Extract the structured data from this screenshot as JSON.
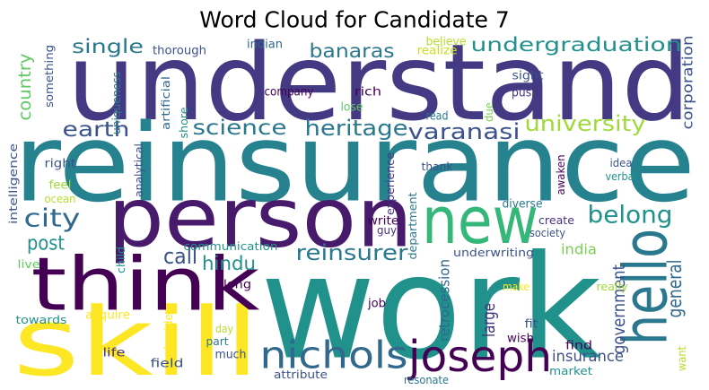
{
  "chart_data": {
    "type": "wordcloud",
    "title": "Word Cloud for Candidate 7",
    "words": [
      {
        "text": "understand",
        "color": "#443a83"
      },
      {
        "text": "reinsurance",
        "color": "#26828e"
      },
      {
        "text": "work",
        "color": "#21918c"
      },
      {
        "text": "person",
        "color": "#481a6c"
      },
      {
        "text": "skill",
        "color": "#fde725"
      },
      {
        "text": "think",
        "color": "#440154"
      },
      {
        "text": "new",
        "color": "#35b779"
      },
      {
        "text": "hello",
        "color": "#2a788e"
      },
      {
        "text": "joseph",
        "color": "#440154"
      },
      {
        "text": "nichols",
        "color": "#31688e"
      },
      {
        "text": "heritage",
        "color": "#2a788e"
      },
      {
        "text": "varanasi",
        "color": "#3b528b"
      },
      {
        "text": "university",
        "color": "#a0da39"
      },
      {
        "text": "science",
        "color": "#2a788e"
      },
      {
        "text": "earth",
        "color": "#3b528b"
      },
      {
        "text": "city",
        "color": "#31688e"
      },
      {
        "text": "post",
        "color": "#21918c"
      },
      {
        "text": "call",
        "color": "#3b528b"
      },
      {
        "text": "hindu",
        "color": "#21918c"
      },
      {
        "text": "reinsurer",
        "color": "#2a788e"
      },
      {
        "text": "belong",
        "color": "#21918c"
      },
      {
        "text": "general",
        "color": "#31688e"
      },
      {
        "text": "government",
        "color": "#3b528b"
      },
      {
        "text": "insurance",
        "color": "#3b528b"
      },
      {
        "text": "india",
        "color": "#7ad151"
      },
      {
        "text": "large",
        "color": "#46337e"
      },
      {
        "text": "retrocession",
        "color": "#31688e"
      },
      {
        "text": "single",
        "color": "#2a788e"
      },
      {
        "text": "banaras",
        "color": "#2a788e"
      },
      {
        "text": "undergraduation",
        "color": "#21918c"
      },
      {
        "text": "country",
        "color": "#5ec962"
      },
      {
        "text": "corporation",
        "color": "#3b528b"
      },
      {
        "text": "thorough",
        "color": "#3b528b"
      },
      {
        "text": "indian",
        "color": "#31688e"
      },
      {
        "text": "believe",
        "color": "#b5de2b"
      },
      {
        "text": "realize",
        "color": "#c8e020"
      },
      {
        "text": "sight",
        "color": "#3b528b"
      },
      {
        "text": "push",
        "color": "#46337e"
      },
      {
        "text": "rich",
        "color": "#440154"
      },
      {
        "text": "company",
        "color": "#440154"
      },
      {
        "text": "lose",
        "color": "#5ec962"
      },
      {
        "text": "read",
        "color": "#2a788e"
      },
      {
        "text": "due",
        "color": "#7ad151"
      },
      {
        "text": "something",
        "color": "#3b528b"
      },
      {
        "text": "uniqueness",
        "color": "#2a788e"
      },
      {
        "text": "artificial",
        "color": "#31688e"
      },
      {
        "text": "shore",
        "color": "#21918c"
      },
      {
        "text": "analytical",
        "color": "#3b528b"
      },
      {
        "text": "intelligence",
        "color": "#3b528b"
      },
      {
        "text": "right",
        "color": "#3b528b"
      },
      {
        "text": "feel",
        "color": "#a0da39"
      },
      {
        "text": "ocean",
        "color": "#b5de2b"
      },
      {
        "text": "experience",
        "color": "#46337e"
      },
      {
        "text": "thank",
        "color": "#3b528b"
      },
      {
        "text": "idea",
        "color": "#3b528b"
      },
      {
        "text": "verbal",
        "color": "#21918c"
      },
      {
        "text": "awaken",
        "color": "#440154"
      },
      {
        "text": "diverse",
        "color": "#2a788e"
      },
      {
        "text": "write",
        "color": "#440154"
      },
      {
        "text": "guy",
        "color": "#46337e"
      },
      {
        "text": "department",
        "color": "#2a788e"
      },
      {
        "text": "create",
        "color": "#46337e"
      },
      {
        "text": "society",
        "color": "#3b528b"
      },
      {
        "text": "communication",
        "color": "#21918c"
      },
      {
        "text": "underwriting",
        "color": "#3b528b"
      },
      {
        "text": "child",
        "color": "#21918c"
      },
      {
        "text": "live",
        "color": "#5ec962"
      },
      {
        "text": "along",
        "color": "#440154"
      },
      {
        "text": "make",
        "color": "#fde725"
      },
      {
        "text": "really",
        "color": "#a0da39"
      },
      {
        "text": "job",
        "color": "#440154"
      },
      {
        "text": "towards",
        "color": "#21918c"
      },
      {
        "text": "acquire",
        "color": "#fde725"
      },
      {
        "text": "beside",
        "color": "#fde725"
      },
      {
        "text": "day",
        "color": "#b5de2b"
      },
      {
        "text": "part",
        "color": "#2a788e"
      },
      {
        "text": "wish",
        "color": "#440154"
      },
      {
        "text": "fit",
        "color": "#3b528b"
      },
      {
        "text": "find",
        "color": "#440154"
      },
      {
        "text": "life",
        "color": "#46337e"
      },
      {
        "text": "much",
        "color": "#3b528b"
      },
      {
        "text": "field",
        "color": "#3b528b"
      },
      {
        "text": "market",
        "color": "#21918c"
      },
      {
        "text": "attribute",
        "color": "#3b528b"
      },
      {
        "text": "resonate",
        "color": "#2a788e"
      },
      {
        "text": "want",
        "color": "#b5de2b"
      }
    ]
  }
}
